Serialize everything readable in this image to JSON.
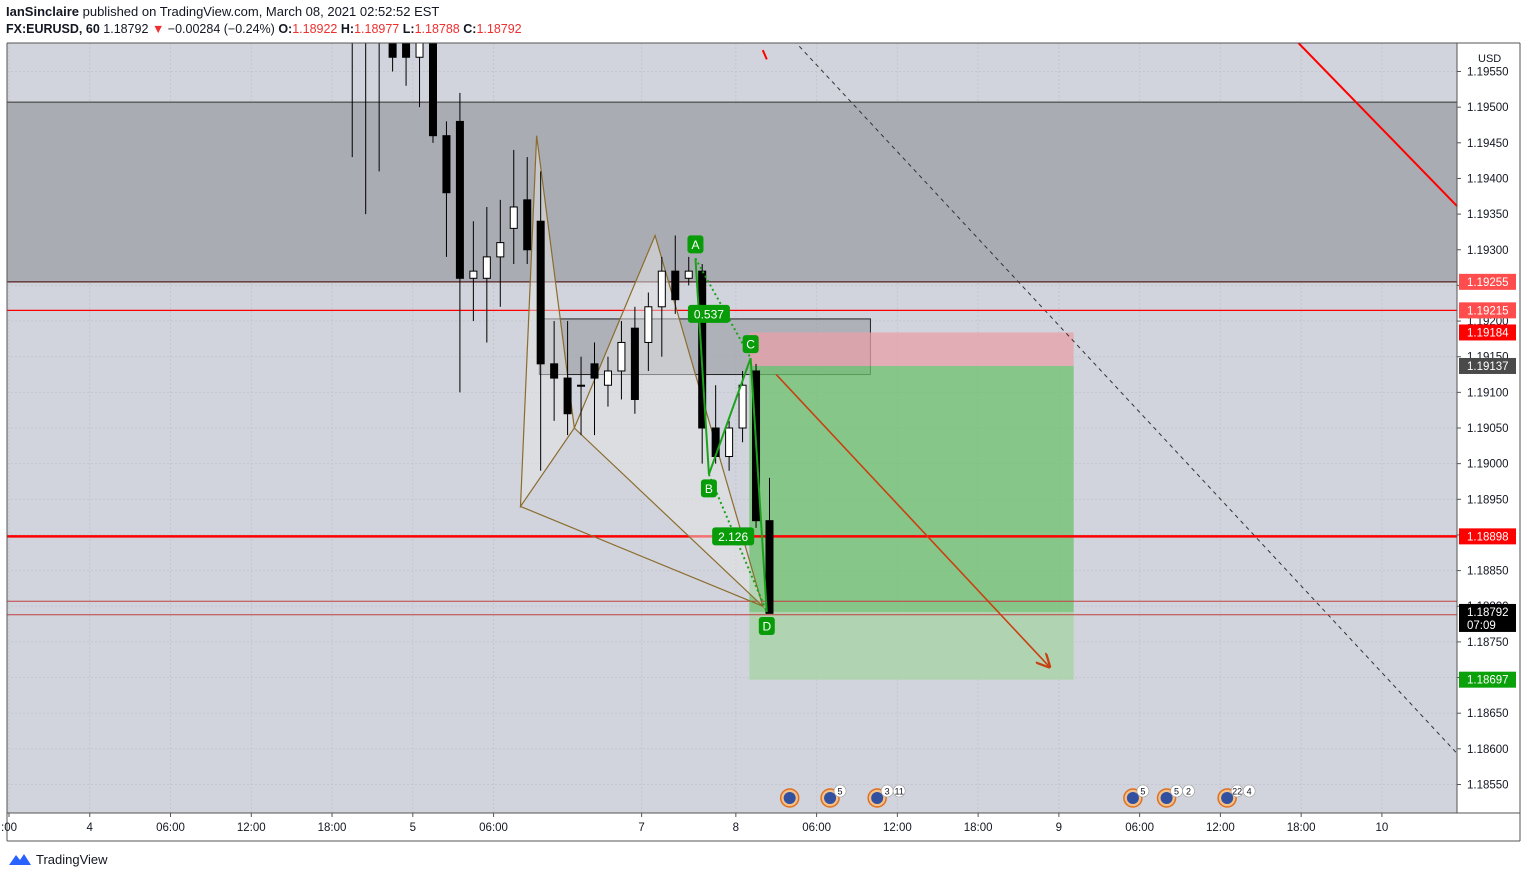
{
  "header": {
    "author": "IanSinclaire",
    "published_text": "published on TradingView.com, March 08, 2021 02:52:52 EST",
    "symbol": "FX:EURUSD, 60",
    "last": "1.18792",
    "change_arrow": "▼",
    "change": "−0.00284 (−0.24%)",
    "o_label": "O:",
    "o": "1.18922",
    "h_label": "H:",
    "h": "1.18977",
    "l_label": "L:",
    "l": "1.18788",
    "c_label": "C:",
    "c": "1.18792"
  },
  "footer": {
    "brand": "TradingView",
    "logo_icon": "tradingview-logo-icon"
  },
  "colors": {
    "background": "#d1d4dc",
    "red": "#ff0000",
    "green_label": "#089d08",
    "harmonic": "#8b6c2e",
    "abcd": "#1aa31a",
    "target_zone": "#7fc77f",
    "stop_zone": "#e8a0a8"
  },
  "chart_data": {
    "type": "candlestick",
    "currency": "USD",
    "y_range": [
      1.1851,
      1.1959
    ],
    "y_ticks": [
      "1.19550",
      "1.19500",
      "1.19450",
      "1.19400",
      "1.19350",
      "1.19300",
      "1.19250",
      "1.19200",
      "1.19150",
      "1.19100",
      "1.19050",
      "1.19000",
      "1.18950",
      "1.18900",
      "1.18850",
      "1.18800",
      "1.18750",
      "1.18700",
      "1.18650",
      "1.18600",
      "1.18550"
    ],
    "x_ticks": [
      {
        "label": ":00",
        "t": 0
      },
      {
        "label": "4",
        "t": 6
      },
      {
        "label": "06:00",
        "t": 12
      },
      {
        "label": "12:00",
        "t": 18
      },
      {
        "label": "18:00",
        "t": 24
      },
      {
        "label": "5",
        "t": 30
      },
      {
        "label": "06:00",
        "t": 36
      },
      {
        "label": "7",
        "t": 47
      },
      {
        "label": "8",
        "t": 54
      },
      {
        "label": "06:00",
        "t": 60
      },
      {
        "label": "12:00",
        "t": 66
      },
      {
        "label": "18:00",
        "t": 72
      },
      {
        "label": "9",
        "t": 78
      },
      {
        "label": "06:00",
        "t": 84
      },
      {
        "label": "12:00",
        "t": 90
      },
      {
        "label": "18:00",
        "t": 96
      },
      {
        "label": "10",
        "t": 102
      }
    ],
    "candles": [
      {
        "t": 25.5,
        "o": 1.196,
        "h": 1.1965,
        "l": 1.1943,
        "c": 1.1962
      },
      {
        "t": 26.5,
        "o": 1.196,
        "h": 1.1963,
        "l": 1.1935,
        "c": 1.1961
      },
      {
        "t": 27.5,
        "o": 1.1962,
        "h": 1.1964,
        "l": 1.1941,
        "c": 1.196
      },
      {
        "t": 28.5,
        "o": 1.196,
        "h": 1.1962,
        "l": 1.1955,
        "c": 1.1957
      },
      {
        "t": 29.5,
        "o": 1.1962,
        "h": 1.1964,
        "l": 1.1953,
        "c": 1.1957
      },
      {
        "t": 30.5,
        "o": 1.1957,
        "h": 1.1963,
        "l": 1.195,
        "c": 1.1962
      },
      {
        "t": 31.5,
        "o": 1.1962,
        "h": 1.1964,
        "l": 1.1945,
        "c": 1.1946
      },
      {
        "t": 32.5,
        "o": 1.1946,
        "h": 1.1948,
        "l": 1.1929,
        "c": 1.1938
      },
      {
        "t": 33.5,
        "o": 1.1948,
        "h": 1.1952,
        "l": 1.191,
        "c": 1.1926
      },
      {
        "t": 34.5,
        "o": 1.1926,
        "h": 1.1934,
        "l": 1.192,
        "c": 1.1927
      },
      {
        "t": 35.5,
        "o": 1.1926,
        "h": 1.1936,
        "l": 1.1917,
        "c": 1.1929
      },
      {
        "t": 36.5,
        "o": 1.1929,
        "h": 1.1937,
        "l": 1.1922,
        "c": 1.1931
      },
      {
        "t": 37.5,
        "o": 1.1933,
        "h": 1.1944,
        "l": 1.1928,
        "c": 1.1936
      },
      {
        "t": 38.5,
        "o": 1.1937,
        "h": 1.1943,
        "l": 1.1928,
        "c": 1.193
      },
      {
        "t": 39.5,
        "o": 1.1934,
        "h": 1.1941,
        "l": 1.1899,
        "c": 1.1914
      },
      {
        "t": 40.5,
        "o": 1.1914,
        "h": 1.192,
        "l": 1.1906,
        "c": 1.1912
      },
      {
        "t": 41.5,
        "o": 1.1912,
        "h": 1.192,
        "l": 1.1904,
        "c": 1.1907
      },
      {
        "t": 42.5,
        "o": 1.1911,
        "h": 1.1915,
        "l": 1.1904,
        "c": 1.1911
      },
      {
        "t": 43.5,
        "o": 1.1914,
        "h": 1.1917,
        "l": 1.1904,
        "c": 1.1912
      },
      {
        "t": 44.5,
        "o": 1.1911,
        "h": 1.1915,
        "l": 1.1908,
        "c": 1.1913
      },
      {
        "t": 45.5,
        "o": 1.1913,
        "h": 1.192,
        "l": 1.1909,
        "c": 1.1917
      },
      {
        "t": 46.5,
        "o": 1.1919,
        "h": 1.1922,
        "l": 1.1907,
        "c": 1.1909
      },
      {
        "t": 47.5,
        "o": 1.1917,
        "h": 1.1924,
        "l": 1.1913,
        "c": 1.1922
      },
      {
        "t": 48.5,
        "o": 1.1922,
        "h": 1.1929,
        "l": 1.1915,
        "c": 1.1927
      },
      {
        "t": 49.5,
        "o": 1.1927,
        "h": 1.1932,
        "l": 1.1921,
        "c": 1.1923
      },
      {
        "t": 50.5,
        "o": 1.1926,
        "h": 1.1929,
        "l": 1.1925,
        "c": 1.1927
      },
      {
        "t": 51.5,
        "o": 1.1927,
        "h": 1.1928,
        "l": 1.19,
        "c": 1.1905
      },
      {
        "t": 52.5,
        "o": 1.1905,
        "h": 1.1911,
        "l": 1.19,
        "c": 1.1901
      },
      {
        "t": 53.5,
        "o": 1.1901,
        "h": 1.1906,
        "l": 1.1899,
        "c": 1.1905
      },
      {
        "t": 54.5,
        "o": 1.1905,
        "h": 1.1913,
        "l": 1.1903,
        "c": 1.1911
      },
      {
        "t": 55.5,
        "o": 1.1913,
        "h": 1.1914,
        "l": 1.1891,
        "c": 1.1892
      },
      {
        "t": 56.5,
        "o": 1.1892,
        "h": 1.1898,
        "l": 1.1879,
        "c": 1.1879
      }
    ],
    "levels": [
      {
        "price": 1.19255,
        "label": "1.19255",
        "style": "zone-edge"
      },
      {
        "price": 1.19215,
        "label": "1.19215",
        "style": "thin-red"
      },
      {
        "price": 1.19184,
        "label": "1.19184",
        "style": "red-label"
      },
      {
        "price": 1.19137,
        "label": "1.19137",
        "style": "dark-label"
      },
      {
        "price": 1.18898,
        "label": "1.18898",
        "style": "thick-red"
      },
      {
        "price": 1.18792,
        "label": "1.18792",
        "time_label": "07:09",
        "style": "price"
      },
      {
        "price": 1.18697,
        "label": "1.18697",
        "style": "green-label"
      }
    ],
    "pattern_points": [
      {
        "name": "A",
        "t": 51.0,
        "price": 1.19288
      },
      {
        "name": "B",
        "t": 52.0,
        "price": 1.18985
      },
      {
        "name": "C",
        "t": 55.1,
        "price": 1.19148
      },
      {
        "name": "D",
        "t": 56.3,
        "price": 1.18792
      }
    ],
    "ratios": [
      {
        "label": "0.537",
        "t": 52.0,
        "price": 1.1921
      },
      {
        "label": "2.126",
        "t": 53.8,
        "price": 1.18898
      }
    ],
    "event_groups": [
      {
        "t": 58.0,
        "badge": ""
      },
      {
        "t": 61.0,
        "badge": "5"
      },
      {
        "t": 64.5,
        "badge": "3",
        "badge2": "11"
      },
      {
        "t": 83.5,
        "badge": "5"
      },
      {
        "t": 86.0,
        "badge": "5",
        "badge2": "2"
      },
      {
        "t": 90.5,
        "badge": "22",
        "badge2": "4"
      }
    ]
  }
}
